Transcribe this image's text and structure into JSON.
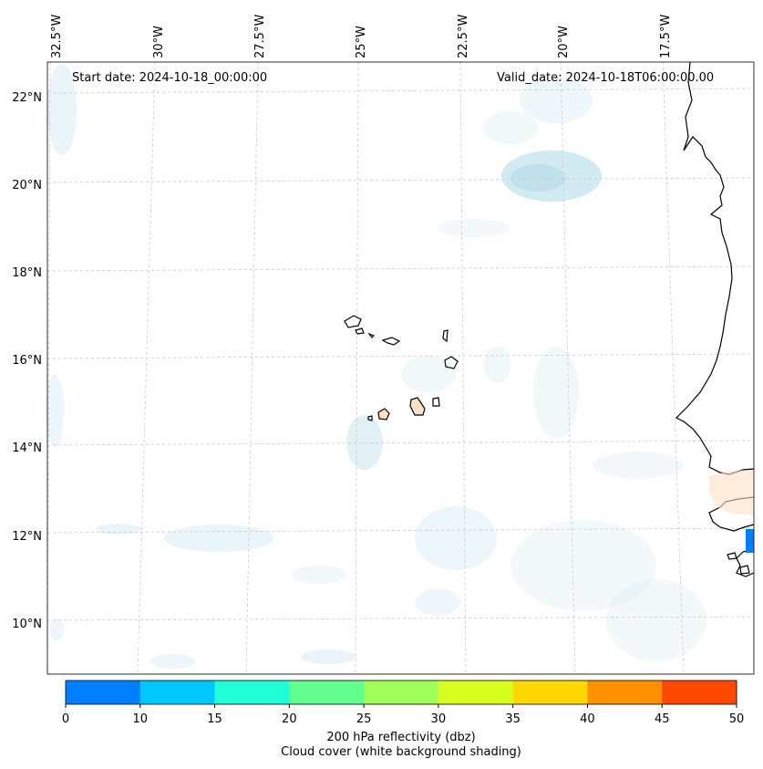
{
  "header": {
    "start_date": "Start date: 2024-10-18_00:00:00",
    "valid_date": "Valid_date: 2024-10-18T06:00:00.00"
  },
  "axes": {
    "lon_labels": [
      "32.5°W",
      "30°W",
      "27.5°W",
      "25°W",
      "22.5°W",
      "20°W",
      "17.5°W"
    ],
    "lat_labels": [
      "22°N",
      "20°N",
      "18°N",
      "16°N",
      "14°N",
      "12°N",
      "10°N"
    ]
  },
  "colorbar": {
    "ticks": [
      "0",
      "10",
      "15",
      "20",
      "25",
      "30",
      "35",
      "40",
      "45",
      "50"
    ],
    "colors": [
      "#0080ff",
      "#00c8ff",
      "#20ffd8",
      "#60ff90",
      "#a0ff58",
      "#d8ff20",
      "#ffd800",
      "#ff9000",
      "#ff4800"
    ],
    "label_line1": "200 hPa reflectivity (dbz)",
    "label_line2": "Cloud cover (white background shading)"
  },
  "style": {
    "coast_color": "#000000",
    "grid_color": "#c8c8c8",
    "cloud_color": "#add8e6",
    "land_fill": "#fde0c5"
  }
}
